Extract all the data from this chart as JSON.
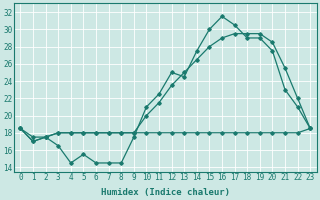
{
  "xlabel": "Humidex (Indice chaleur)",
  "xlim": [
    -0.5,
    23.5
  ],
  "ylim": [
    13.5,
    33
  ],
  "yticks": [
    14,
    16,
    18,
    20,
    22,
    24,
    26,
    28,
    30,
    32
  ],
  "xticks": [
    0,
    1,
    2,
    3,
    4,
    5,
    6,
    7,
    8,
    9,
    10,
    11,
    12,
    13,
    14,
    15,
    16,
    17,
    18,
    19,
    20,
    21,
    22,
    23
  ],
  "bg_color": "#cde8e4",
  "line_color": "#1a7a6e",
  "grid_color": "#ffffff",
  "line1_y": [
    18.5,
    17.0,
    17.5,
    18.0,
    18.0,
    18.0,
    18.0,
    18.0,
    18.0,
    18.0,
    18.0,
    18.0,
    18.0,
    18.0,
    18.0,
    18.0,
    18.0,
    18.0,
    18.0,
    18.0,
    18.0,
    18.0,
    18.0,
    18.5
  ],
  "line2_y": [
    18.5,
    17.0,
    17.5,
    16.5,
    14.5,
    15.5,
    14.5,
    14.5,
    14.5,
    17.5,
    21.0,
    22.5,
    25.0,
    24.5,
    27.5,
    30.0,
    31.5,
    30.5,
    29.0,
    29.0,
    27.5,
    23.0,
    21.0,
    18.5
  ],
  "line3_y": [
    18.5,
    17.5,
    17.5,
    18.0,
    18.0,
    18.0,
    18.0,
    18.0,
    18.0,
    18.0,
    20.0,
    21.5,
    23.5,
    25.0,
    26.5,
    28.0,
    29.0,
    29.5,
    29.5,
    29.5,
    28.5,
    25.5,
    22.0,
    18.5
  ]
}
